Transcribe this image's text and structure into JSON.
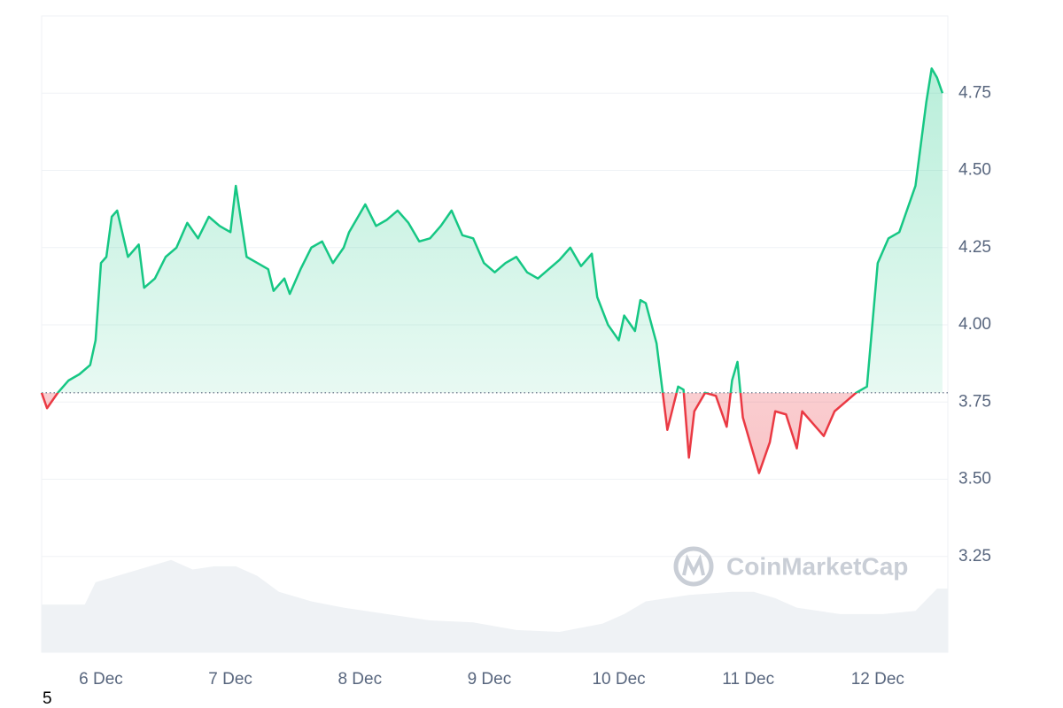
{
  "chart_data": {
    "type": "line",
    "x": [
      0,
      1,
      3,
      5,
      7,
      9,
      10,
      11,
      12,
      13,
      14,
      16,
      18,
      19,
      21,
      23,
      25,
      27,
      29,
      31,
      33,
      35,
      36,
      38,
      40,
      42,
      43,
      45,
      46,
      48,
      50,
      52,
      54,
      56,
      57,
      58,
      60,
      62,
      64,
      66,
      68,
      70,
      72,
      74,
      76,
      78,
      80,
      82,
      84,
      86,
      88,
      90,
      92,
      94,
      96,
      98,
      100,
      102,
      103,
      105,
      107,
      108,
      110,
      111,
      112,
      114,
      115,
      116,
      118,
      119,
      120,
      121,
      123,
      125,
      127,
      128,
      129,
      130,
      132,
      133,
      135,
      136,
      138,
      140,
      141,
      143,
      145,
      147,
      149,
      151,
      153,
      155,
      157,
      159,
      160,
      162,
      164,
      165,
      166,
      167
    ],
    "series": [
      {
        "values": [
          3.78,
          3.73,
          3.78,
          3.82,
          3.84,
          3.87,
          3.95,
          4.2,
          4.22,
          4.35,
          4.37,
          4.22,
          4.26,
          4.12,
          4.15,
          4.22,
          4.25,
          4.33,
          4.28,
          4.35,
          4.32,
          4.3,
          4.45,
          4.22,
          4.2,
          4.18,
          4.11,
          4.15,
          4.1,
          4.18,
          4.25,
          4.27,
          4.2,
          4.25,
          4.3,
          4.33,
          4.39,
          4.32,
          4.34,
          4.37,
          4.33,
          4.27,
          4.28,
          4.32,
          4.37,
          4.29,
          4.28,
          4.2,
          4.17,
          4.2,
          4.22,
          4.17,
          4.15,
          4.18,
          4.21,
          4.25,
          4.19,
          4.23,
          4.09,
          4.0,
          3.95,
          4.03,
          3.98,
          4.08,
          4.07,
          3.94,
          3.8,
          3.66,
          3.8,
          3.79,
          3.57,
          3.72,
          3.78,
          3.77,
          3.67,
          3.82,
          3.88,
          3.7,
          3.58,
          3.52,
          3.62,
          3.72,
          3.71,
          3.6,
          3.72,
          3.68,
          3.64,
          3.72,
          3.75,
          3.78,
          3.8,
          4.2,
          4.28,
          4.3,
          4.35,
          4.45,
          4.72,
          4.83,
          4.8,
          4.75
        ]
      }
    ],
    "baseline": 3.78,
    "up_color": "#16c784",
    "down_color": "#ea3943",
    "volume": {
      "axis": "y2",
      "color": "#eff2f5",
      "x": [
        0,
        8,
        10,
        14,
        20,
        24,
        28,
        32,
        36,
        40,
        44,
        50,
        56,
        64,
        72,
        80,
        88,
        96,
        104,
        108,
        112,
        120,
        128,
        132,
        136,
        140,
        148,
        156,
        162,
        166,
        168
      ],
      "values": [
        7.5,
        7.5,
        11,
        12,
        13.5,
        14.5,
        13,
        13.5,
        13.5,
        12,
        9.5,
        8,
        7,
        6,
        5,
        4.7,
        3.5,
        3.2,
        4.5,
        6,
        8,
        9,
        9.5,
        9.5,
        8.5,
        7,
        6,
        6,
        6.5,
        10,
        10
      ]
    },
    "xlim": [
      0,
      168
    ],
    "xticks": [
      {
        "value": 11,
        "label": "6 Dec"
      },
      {
        "value": 35,
        "label": "7 Dec"
      },
      {
        "value": 59,
        "label": "8 Dec"
      },
      {
        "value": 83,
        "label": "9 Dec"
      },
      {
        "value": 107,
        "label": "10 Dec"
      },
      {
        "value": 131,
        "label": "11 Dec"
      },
      {
        "value": 155,
        "label": "12 Dec"
      }
    ],
    "ylim": [
      2.94,
      5.0
    ],
    "yticks": [
      3.25,
      {
        "value": 3.5,
        "label": "3.50"
      },
      3.75,
      {
        "value": 4,
        "label": "4.00"
      },
      4.25,
      {
        "value": 4.5,
        "label": "4.50"
      },
      4.75
    ],
    "y2lim": [
      0,
      100
    ],
    "grid": true
  },
  "watermark": "CoinMarketCap",
  "footer_text": "5"
}
